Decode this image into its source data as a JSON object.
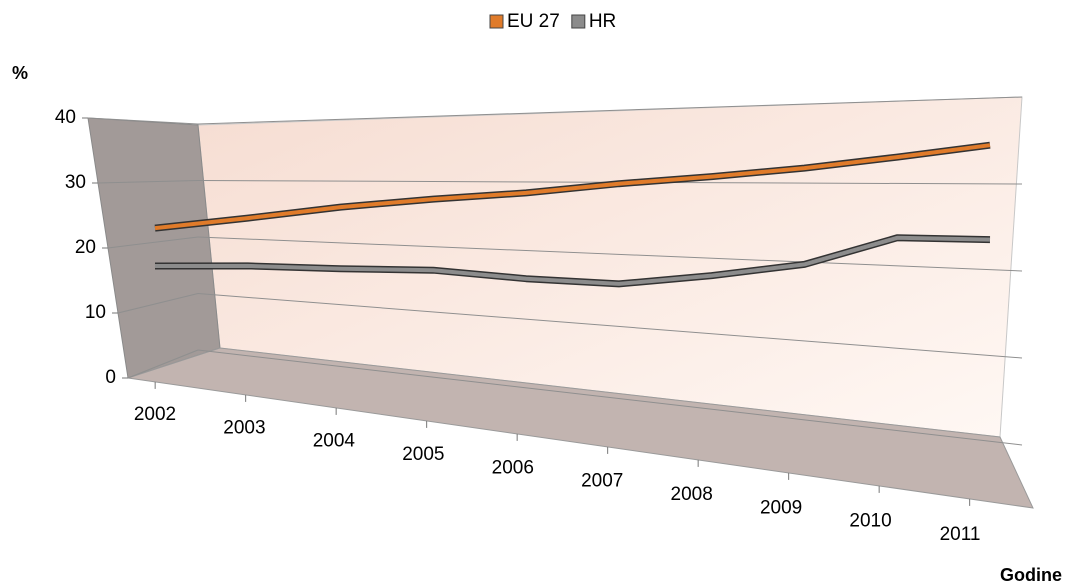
{
  "chart_data": {
    "type": "line",
    "y_label": "%",
    "x_label": "Godine",
    "categories": [
      "2002",
      "2003",
      "2004",
      "2005",
      "2006",
      "2007",
      "2008",
      "2009",
      "2010",
      "2011"
    ],
    "series": [
      {
        "name": "EU 27",
        "color": "#e07b2a",
        "values": [
          21.3,
          23.6,
          25.8,
          27.3,
          28.4,
          29.8,
          30.8,
          31.9,
          33.2,
          34.5
        ]
      },
      {
        "name": "HR",
        "color": "#8c8c8c",
        "values": [
          14.4,
          15.4,
          15.8,
          16.4,
          15.9,
          15.9,
          17.7,
          19.7,
          23.4,
          23.5
        ]
      }
    ],
    "ylim": [
      0,
      40
    ],
    "yticks": [
      0,
      10,
      20,
      30,
      40
    ],
    "grid": true,
    "legend": "top"
  }
}
